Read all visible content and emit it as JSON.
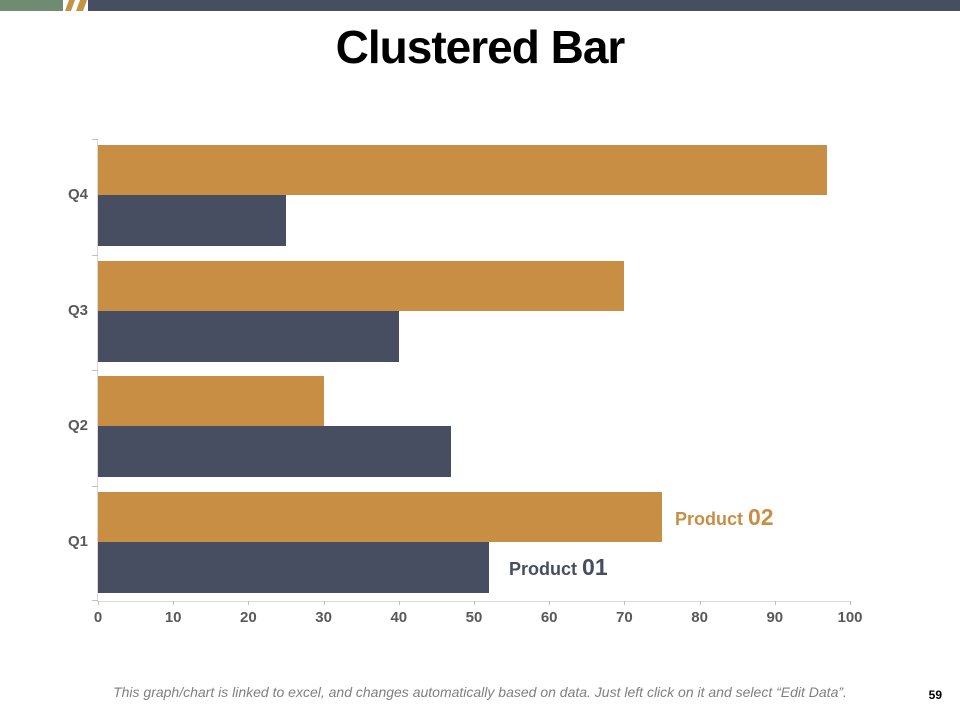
{
  "slide": {
    "title": "Clustered Bar",
    "footer_note": "This graph/chart is linked to excel, and changes automatically based on data. Just left click on it and select “Edit Data”.",
    "page_number": "59"
  },
  "chart_data": {
    "type": "bar",
    "orientation": "horizontal",
    "title": "Clustered Bar",
    "categories": [
      "Q1",
      "Q2",
      "Q3",
      "Q4"
    ],
    "display_order_top_to_bottom": [
      "Q4",
      "Q3",
      "Q2",
      "Q1"
    ],
    "series": [
      {
        "name": "Product 01",
        "color": "#474e61",
        "values": [
          52,
          47,
          40,
          25
        ]
      },
      {
        "name": "Product 02",
        "color": "#c78e44",
        "values": [
          75,
          30,
          70,
          97
        ]
      }
    ],
    "xlim": [
      0,
      100
    ],
    "x_ticks": [
      0,
      10,
      20,
      30,
      40,
      50,
      60,
      70,
      80,
      90,
      100
    ],
    "grid": false,
    "legend_style": "series name labels beside the Q1 bars",
    "axis_line_color": "#d9d9d9",
    "tick_color": "#bfbfbf",
    "axis_label_color": "#595959"
  },
  "decor": {
    "strip_green": "#6f8c72",
    "strip_gold": "#c49445",
    "strip_navy": "#474e61"
  }
}
